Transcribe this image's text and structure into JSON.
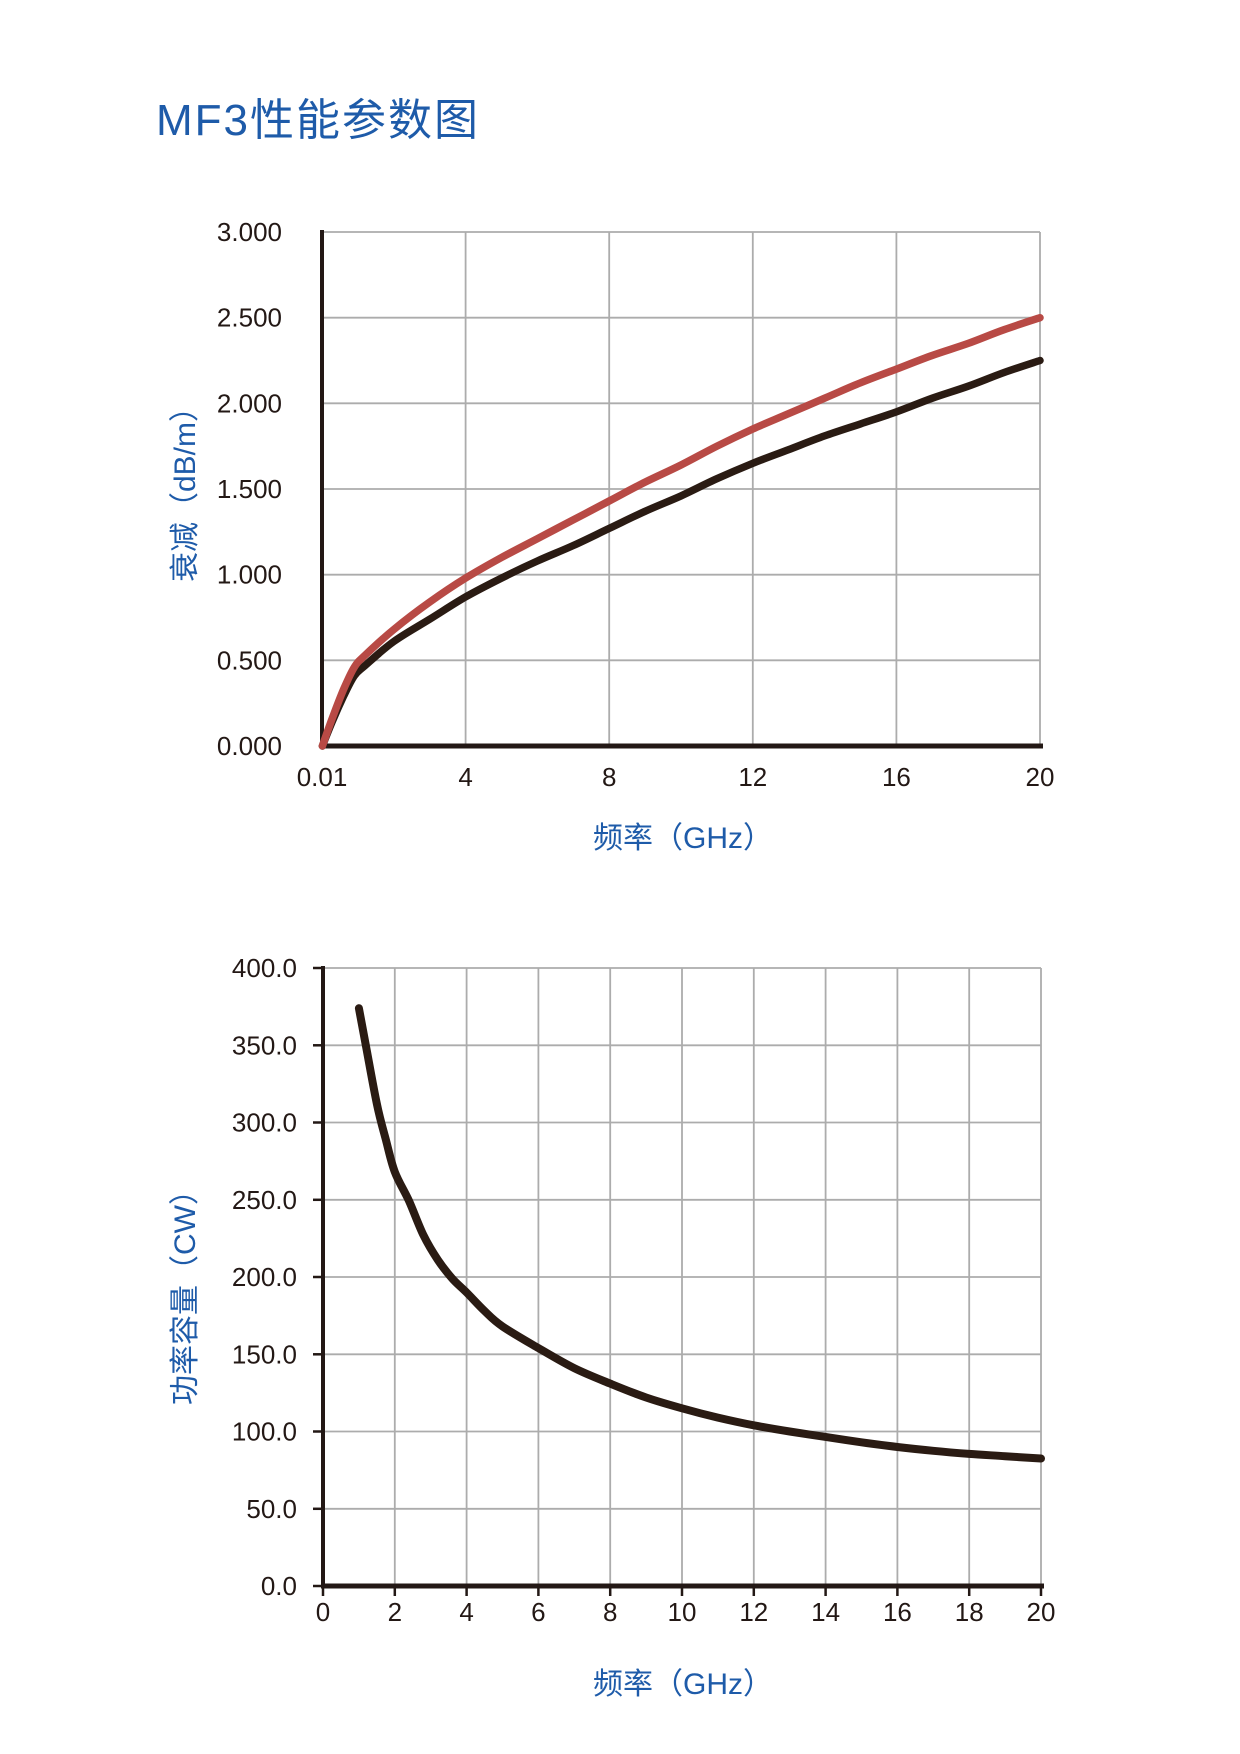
{
  "page": {
    "title": "MF3性能参数图"
  },
  "colors": {
    "heading_blue": "#1E5BA9",
    "tick_text": "#231815",
    "axis": "#231815",
    "grid": "#ACACAC",
    "red_curve": "#B84A45",
    "black_curve": "#2A1B13",
    "background": "#FFFFFF"
  },
  "chart_data": [
    {
      "type": "line",
      "name": "attenuation-vs-frequency",
      "xlabel": "频率（GHz）",
      "ylabel": "衰减（dB/m）",
      "xlim": [
        0,
        20
      ],
      "ylim": [
        0,
        3
      ],
      "grid": true,
      "legend": "none",
      "x_tick_values": [
        0,
        4,
        8,
        12,
        16,
        20
      ],
      "x_tick_labels": [
        "0.01",
        "4",
        "8",
        "12",
        "16",
        "20"
      ],
      "y_tick_values": [
        0,
        0.5,
        1.0,
        1.5,
        2.0,
        2.5,
        3.0
      ],
      "y_tick_labels": [
        "0.000",
        "0.500",
        "1.000",
        "1.500",
        "2.000",
        "2.500",
        "3.000"
      ],
      "series": [
        {
          "name": "attenuation-lower-black",
          "color": "#2A1B13",
          "x": [
            0.01,
            0.3,
            0.6,
            0.9,
            1.2,
            2,
            3,
            4,
            5,
            6,
            7,
            8,
            9,
            10,
            11,
            12,
            13,
            14,
            15,
            16,
            17,
            18,
            19,
            20
          ],
          "y": [
            0,
            0.15,
            0.29,
            0.41,
            0.47,
            0.61,
            0.74,
            0.87,
            0.98,
            1.08,
            1.17,
            1.27,
            1.37,
            1.46,
            1.56,
            1.65,
            1.73,
            1.81,
            1.88,
            1.95,
            2.03,
            2.1,
            2.18,
            2.25
          ]
        },
        {
          "name": "attenuation-upper-red",
          "color": "#B84A45",
          "x": [
            0.01,
            0.3,
            0.6,
            0.9,
            1.2,
            2,
            3,
            4,
            5,
            6,
            7,
            8,
            9,
            10,
            11,
            12,
            13,
            14,
            15,
            16,
            17,
            18,
            19,
            20
          ],
          "y": [
            0,
            0.17,
            0.33,
            0.46,
            0.53,
            0.68,
            0.84,
            0.98,
            1.1,
            1.21,
            1.32,
            1.43,
            1.54,
            1.64,
            1.75,
            1.85,
            1.94,
            2.03,
            2.12,
            2.2,
            2.28,
            2.35,
            2.43,
            2.5
          ]
        }
      ]
    },
    {
      "type": "line",
      "name": "power-capacity-vs-frequency",
      "xlabel": "频率（GHz）",
      "ylabel": "功率容量（CW）",
      "xlim": [
        0,
        20
      ],
      "ylim": [
        0,
        400
      ],
      "grid": true,
      "legend": "none",
      "x_tick_values": [
        0,
        2,
        4,
        6,
        8,
        10,
        12,
        14,
        16,
        18,
        20
      ],
      "x_tick_labels": [
        "0",
        "2",
        "4",
        "6",
        "8",
        "10",
        "12",
        "14",
        "16",
        "18",
        "20"
      ],
      "y_tick_values": [
        0,
        50,
        100,
        150,
        200,
        250,
        300,
        350,
        400
      ],
      "y_tick_labels": [
        "0.0",
        "50.0",
        "100.0",
        "150.0",
        "200.0",
        "250.0",
        "300.0",
        "350.0",
        "400.0"
      ],
      "series": [
        {
          "name": "power-capacity",
          "color": "#2A1B13",
          "x": [
            1,
            1.2,
            1.5,
            1.75,
            2,
            2.4,
            2.8,
            3.2,
            3.6,
            4,
            4.5,
            5,
            6,
            7,
            8,
            9,
            10,
            11,
            12,
            13,
            14,
            15,
            16,
            17,
            18,
            19,
            20
          ],
          "y": [
            374,
            349,
            312,
            289,
            268,
            249,
            227,
            211,
            199,
            190,
            178,
            168,
            154,
            141,
            131,
            122,
            115,
            109,
            104,
            100,
            96.5,
            93,
            90,
            87.5,
            85.5,
            84,
            82.5
          ]
        }
      ]
    }
  ]
}
